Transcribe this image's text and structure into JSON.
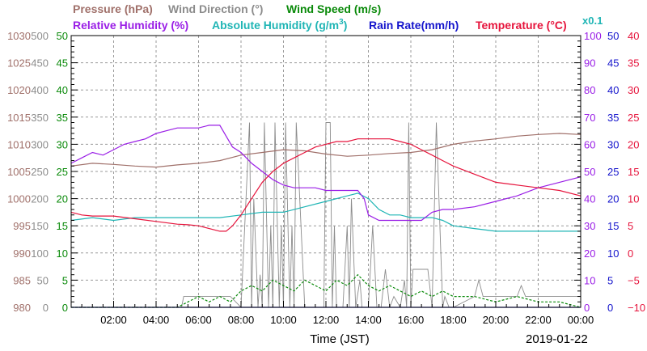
{
  "chart_data": {
    "type": "line",
    "xlabel": "Time (JST)",
    "date_label": "2019-01-22",
    "legend": [
      {
        "text": "Pressure (hPa)",
        "color": "#a0706a"
      },
      {
        "text": "Wind Direction (°)",
        "color": "#8c8c8c"
      },
      {
        "text": "Wind Speed (m/s)",
        "color": "#0a8a0a"
      },
      {
        "text": "Relative Humidity (%)",
        "color": "#9a1ee6"
      },
      {
        "text": "Absolute Humidity (g/m",
        "sup": "3",
        "tail": ")",
        "color": "#1fb5b5"
      },
      {
        "text": "Rain Rate(mm/h)",
        "color": "#1414cc"
      },
      {
        "text": "Temperature (°C)",
        "color": "#e6143c"
      }
    ],
    "abs_scale_note": "x0.1",
    "x_ticks": [
      "02:00",
      "04:00",
      "06:00",
      "08:00",
      "10:00",
      "12:00",
      "14:00",
      "16:00",
      "18:00",
      "20:00",
      "22:00",
      "00:00"
    ],
    "x_range_hours": [
      0,
      24
    ],
    "left_axes": [
      {
        "name": "pressure",
        "color": "#a0706a",
        "ticks": [
          "980",
          "985",
          "990",
          "995",
          "1000",
          "1005",
          "1010",
          "1015",
          "1020",
          "1025",
          "1030"
        ],
        "range": [
          980,
          1030
        ]
      },
      {
        "name": "wind_direction",
        "color": "#8c8c8c",
        "ticks": [
          "0",
          "50",
          "100",
          "150",
          "200",
          "250",
          "300",
          "350",
          "400",
          "450",
          "500"
        ],
        "range": [
          0,
          500
        ]
      },
      {
        "name": "wind_speed",
        "color": "#0a8a0a",
        "ticks": [
          "0",
          "5",
          "10",
          "15",
          "20",
          "25",
          "30",
          "35",
          "40",
          "45",
          "50"
        ],
        "range": [
          0,
          50
        ]
      }
    ],
    "right_axes": [
      {
        "name": "relative_humidity",
        "color": "#9a1ee6",
        "ticks": [
          "0",
          "10",
          "20",
          "30",
          "40",
          "50",
          "60",
          "70",
          "80",
          "90",
          "100"
        ],
        "range": [
          0,
          100
        ]
      },
      {
        "name": "rain_rate",
        "color": "#1414cc",
        "ticks": [
          "0",
          "5",
          "10",
          "15",
          "20",
          "25",
          "30",
          "35",
          "40",
          "45",
          "50"
        ],
        "range": [
          0,
          50
        ]
      },
      {
        "name": "temperature",
        "color": "#e6143c",
        "ticks": [
          "−10",
          "−5",
          "0",
          "5",
          "10",
          "15",
          "20",
          "25",
          "30",
          "35",
          "40"
        ],
        "range": [
          -10,
          40
        ]
      }
    ],
    "series": [
      {
        "name": "Pressure (hPa)",
        "axis": "pressure",
        "color": "#a0706a",
        "x": [
          0,
          1,
          2,
          3,
          4,
          5,
          6,
          7,
          8,
          9,
          10,
          11,
          12,
          13,
          14,
          15,
          16,
          17,
          18,
          19,
          20,
          21,
          22,
          23,
          24
        ],
        "y": [
          1006,
          1006.5,
          1006.3,
          1006,
          1005.8,
          1006.2,
          1006.5,
          1007,
          1008,
          1008.5,
          1009,
          1008.8,
          1008.2,
          1007.8,
          1008,
          1008.3,
          1008.5,
          1009,
          1010,
          1010.6,
          1011,
          1011.5,
          1011.8,
          1012,
          1011.8
        ]
      },
      {
        "name": "Relative Humidity (%)",
        "axis": "relative_humidity",
        "color": "#9a1ee6",
        "x": [
          0,
          0.5,
          1,
          1.5,
          2,
          2.5,
          3,
          3.5,
          4,
          4.5,
          5,
          5.5,
          6,
          6.5,
          7,
          7.3,
          7.6,
          8,
          8.5,
          9,
          9.5,
          10,
          10.5,
          11,
          11.5,
          12,
          12.5,
          13,
          13.5,
          13.8,
          14,
          14.5,
          15,
          15.5,
          15.8,
          16,
          16.5,
          17,
          17.5,
          18,
          19,
          20,
          21,
          22,
          23,
          24
        ],
        "y": [
          53,
          55,
          57,
          56,
          58,
          60,
          61,
          62,
          64,
          65,
          66,
          66,
          66,
          67,
          67,
          63,
          59,
          57,
          53,
          50,
          47,
          45,
          44,
          44,
          44,
          43,
          43,
          43,
          43,
          40,
          34,
          32,
          32,
          32,
          32,
          32,
          32,
          35,
          36,
          36,
          37,
          39,
          41,
          44,
          46,
          48
        ]
      },
      {
        "name": "Absolute Humidity (g/m3)",
        "axis": "relative_humidity",
        "color": "#1fb5b5",
        "x": [
          0,
          1,
          2,
          3,
          4,
          5,
          6,
          7,
          8,
          9,
          10,
          11,
          12,
          13,
          13.5,
          14,
          14.5,
          15,
          15.5,
          16,
          16.5,
          17,
          17.5,
          18,
          19,
          20,
          21,
          22,
          23,
          24
        ],
        "y": [
          32,
          33,
          32,
          33,
          33,
          33,
          33,
          33,
          34,
          35,
          35,
          37,
          39,
          41,
          42,
          40,
          36,
          34,
          34,
          33,
          33,
          33,
          32,
          30,
          29,
          28,
          28,
          28,
          28,
          28
        ]
      },
      {
        "name": "Temperature (°C)",
        "axis": "temperature",
        "color": "#e6143c",
        "x": [
          0,
          0.5,
          1,
          2,
          3,
          4,
          5,
          5.5,
          6,
          6.5,
          7,
          7.3,
          7.6,
          8,
          8.5,
          9,
          9.5,
          10,
          10.5,
          11,
          11.5,
          12,
          12.5,
          13,
          13.5,
          14,
          14.5,
          15,
          15.5,
          16,
          16.5,
          17,
          17.5,
          18,
          19,
          20,
          21,
          22,
          23,
          24
        ],
        "y": [
          7.5,
          7,
          6.8,
          6.8,
          6.3,
          5.8,
          5.3,
          5.2,
          5,
          4.5,
          4,
          4,
          5,
          7,
          10,
          13,
          15,
          16.5,
          17.5,
          18.5,
          19.5,
          20,
          20.5,
          20.5,
          21,
          21,
          21,
          21,
          20.5,
          20,
          19,
          18,
          17,
          16,
          14.5,
          13,
          12.5,
          12,
          11.5,
          10.5
        ]
      },
      {
        "name": "Rain Rate(mm/h)",
        "axis": "rain_rate",
        "color": "#1414cc",
        "x": [
          0,
          24
        ],
        "y": [
          0,
          0
        ]
      },
      {
        "name": "Wind Direction (°)",
        "axis": "wind_direction",
        "color": "#8c8c8c",
        "x": [
          0,
          5.2,
          5.3,
          6,
          7,
          7.2,
          7.5,
          8,
          8.4,
          8.5,
          8.6,
          8.8,
          8.9,
          9.0,
          9.1,
          9.3,
          9.4,
          9.5,
          9.6,
          9.8,
          9.9,
          10.0,
          10.1,
          10.3,
          10.4,
          10.5,
          10.6,
          11,
          11.5,
          11.9,
          12.0,
          12.1,
          12.2,
          12.3,
          12.4,
          12.5,
          12.8,
          13.0,
          13.1,
          13.2,
          13.4,
          13.6,
          13.7,
          13.8,
          14.0,
          14.2,
          14.4,
          14.6,
          14.8,
          15.0,
          15.2,
          15.5,
          15.7,
          15.8,
          15.9,
          16.0,
          16.1,
          16.3,
          16.5,
          16.8,
          17.0,
          17.2,
          17.5,
          17.6,
          17.8,
          18.0,
          19.0,
          19.2,
          19.4,
          20,
          21,
          21.2,
          21.4,
          22,
          23,
          24
        ],
        "y": [
          0,
          0,
          20,
          20,
          20,
          20,
          20,
          0,
          340,
          0,
          200,
          0,
          60,
          0,
          340,
          0,
          150,
          0,
          340,
          0,
          150,
          0,
          340,
          0,
          150,
          0,
          340,
          0,
          0,
          0,
          340,
          340,
          340,
          0,
          150,
          0,
          0,
          150,
          0,
          200,
          0,
          50,
          0,
          0,
          0,
          150,
          0,
          0,
          70,
          0,
          20,
          0,
          50,
          0,
          340,
          0,
          70,
          70,
          70,
          70,
          0,
          340,
          0,
          20,
          0,
          0,
          20,
          50,
          20,
          20,
          20,
          40,
          20,
          20,
          20,
          20
        ]
      },
      {
        "name": "Wind Speed (m/s)",
        "axis": "wind_speed",
        "color": "#0a8a0a",
        "x": [
          0,
          5,
          5.5,
          6,
          6.5,
          7,
          7.5,
          8,
          8.5,
          9,
          9.5,
          10,
          10.5,
          11,
          11.5,
          12,
          12.5,
          13,
          13.5,
          14,
          14.5,
          15,
          15.5,
          16,
          16.5,
          17,
          17.5,
          18,
          19,
          20,
          21,
          22,
          23,
          24
        ],
        "y": [
          0,
          0,
          1,
          2,
          1,
          2,
          1,
          3,
          4,
          3,
          5,
          4,
          3,
          5,
          4,
          3,
          5,
          4,
          6,
          4,
          3,
          4,
          3,
          2,
          3,
          2,
          3,
          2,
          2,
          1,
          2,
          1,
          1,
          0
        ]
      }
    ]
  }
}
